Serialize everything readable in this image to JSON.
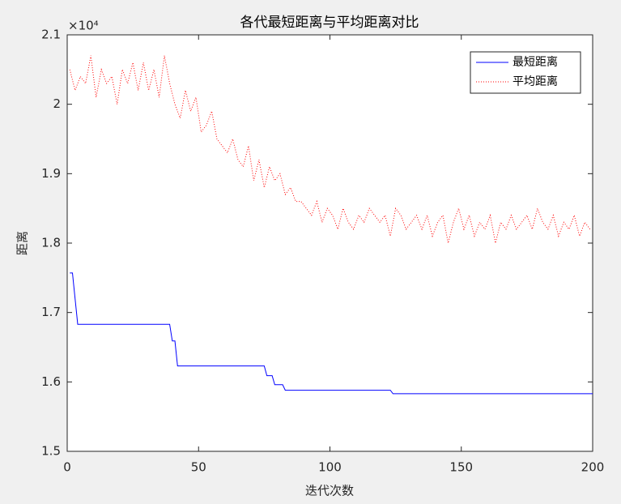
{
  "chart_data": {
    "type": "line",
    "title": "各代最短距离与平均距离对比",
    "x_label": "迭代次数",
    "y_label": "距离",
    "y_exponent_label": "×10⁴",
    "xlim": [
      0,
      200
    ],
    "xticks": [
      0,
      50,
      100,
      150,
      200
    ],
    "ylim": [
      1.5,
      2.1
    ],
    "yticks": [
      1.5,
      1.6,
      1.7,
      1.8,
      1.9,
      2,
      2.1
    ],
    "legend": "upper right",
    "series": [
      {
        "name": "最短距离",
        "color": "#0000ff",
        "style": "solid",
        "x": [
          1,
          2,
          3,
          4,
          39,
          40,
          41,
          42,
          75,
          76,
          78,
          79,
          82,
          83,
          123,
          124,
          200
        ],
        "values": [
          1.757,
          1.757,
          1.72,
          1.683,
          1.683,
          1.659,
          1.659,
          1.623,
          1.623,
          1.609,
          1.609,
          1.596,
          1.596,
          1.588,
          1.588,
          1.583,
          1.583
        ]
      },
      {
        "name": "平均距离",
        "color": "#ff0000",
        "style": "dotted",
        "x": [
          1,
          3,
          5,
          7,
          9,
          11,
          13,
          15,
          17,
          19,
          21,
          23,
          25,
          27,
          29,
          31,
          33,
          35,
          37,
          39,
          41,
          43,
          45,
          47,
          49,
          51,
          53,
          55,
          57,
          59,
          61,
          63,
          65,
          67,
          69,
          71,
          73,
          75,
          77,
          79,
          81,
          83,
          85,
          87,
          89,
          91,
          93,
          95,
          97,
          99,
          101,
          103,
          105,
          107,
          109,
          111,
          113,
          115,
          117,
          119,
          121,
          123,
          125,
          127,
          129,
          131,
          133,
          135,
          137,
          139,
          141,
          143,
          145,
          147,
          149,
          151,
          153,
          155,
          157,
          159,
          161,
          163,
          165,
          167,
          169,
          171,
          173,
          175,
          177,
          179,
          181,
          183,
          185,
          187,
          189,
          191,
          193,
          195,
          197,
          199
        ],
        "values": [
          2.05,
          2.02,
          2.04,
          2.03,
          2.07,
          2.01,
          2.05,
          2.03,
          2.04,
          2.0,
          2.05,
          2.03,
          2.06,
          2.02,
          2.06,
          2.02,
          2.05,
          2.01,
          2.07,
          2.03,
          2.0,
          1.98,
          2.02,
          1.99,
          2.01,
          1.96,
          1.97,
          1.99,
          1.95,
          1.94,
          1.93,
          1.95,
          1.92,
          1.91,
          1.94,
          1.89,
          1.92,
          1.88,
          1.91,
          1.89,
          1.9,
          1.87,
          1.88,
          1.86,
          1.86,
          1.85,
          1.84,
          1.86,
          1.83,
          1.85,
          1.84,
          1.82,
          1.85,
          1.83,
          1.82,
          1.84,
          1.83,
          1.85,
          1.84,
          1.83,
          1.84,
          1.81,
          1.85,
          1.84,
          1.82,
          1.83,
          1.84,
          1.82,
          1.84,
          1.81,
          1.83,
          1.84,
          1.8,
          1.83,
          1.85,
          1.82,
          1.84,
          1.81,
          1.83,
          1.82,
          1.84,
          1.8,
          1.83,
          1.82,
          1.84,
          1.82,
          1.83,
          1.84,
          1.82,
          1.85,
          1.83,
          1.82,
          1.84,
          1.81,
          1.83,
          1.82,
          1.84,
          1.81,
          1.83,
          1.82
        ]
      }
    ]
  }
}
